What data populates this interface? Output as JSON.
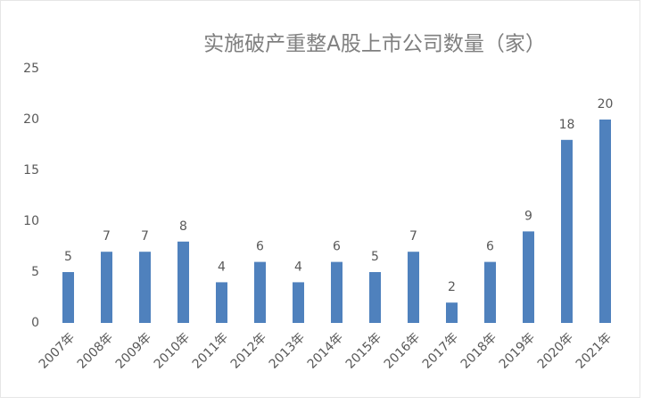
{
  "chart_data": {
    "type": "bar",
    "title": "实施破产重整A股上市公司数量（家）",
    "categories": [
      "2007年",
      "2008年",
      "2009年",
      "2010年",
      "2011年",
      "2012年",
      "2013年",
      "2014年",
      "2015年",
      "2016年",
      "2017年",
      "2018年",
      "2019年",
      "2020年",
      "2021年"
    ],
    "values": [
      5,
      7,
      7,
      8,
      4,
      6,
      4,
      6,
      5,
      7,
      2,
      6,
      9,
      18,
      20
    ],
    "color": "#4f81bd",
    "ylim": [
      0,
      25
    ],
    "yticks": [
      0,
      5,
      10,
      15,
      20,
      25
    ],
    "grid": false
  }
}
